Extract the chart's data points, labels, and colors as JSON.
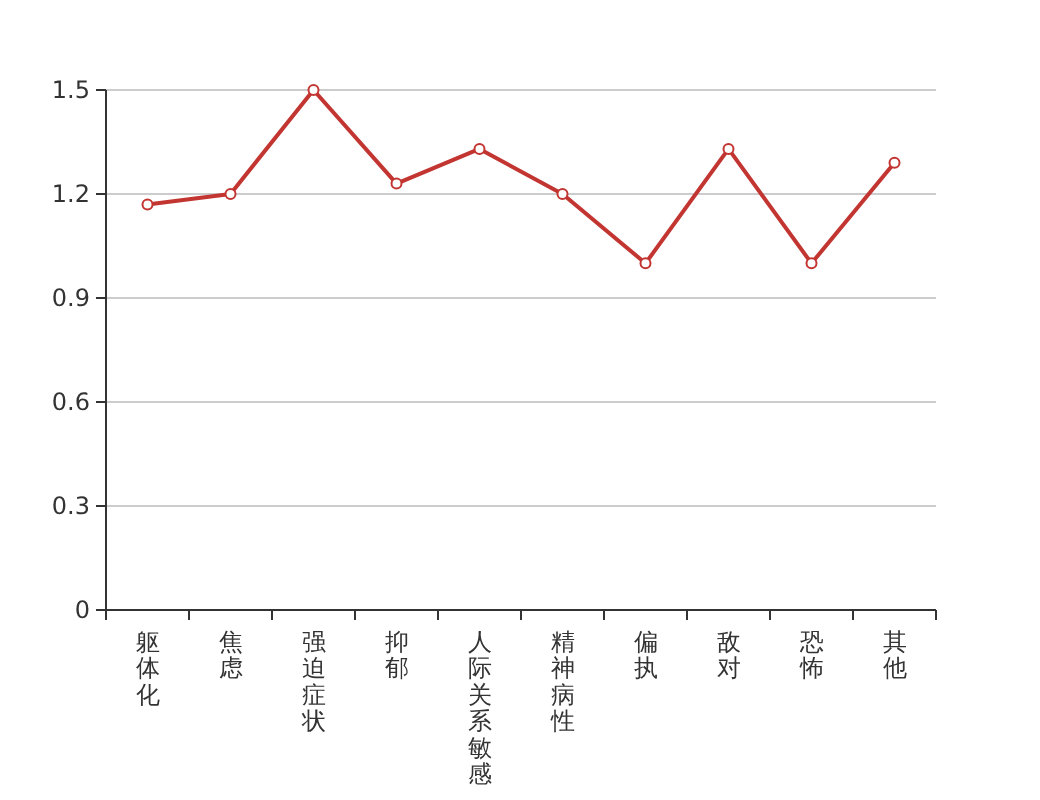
{
  "chart_data": {
    "type": "line",
    "categories": [
      "躯体化",
      "焦虑",
      "强迫症状",
      "抑郁",
      "人际关系敏感",
      "精神病性",
      "偏执",
      "敌对",
      "恐怖",
      "其他"
    ],
    "series": [
      {
        "color": "#c23531",
        "values": [
          1.17,
          1.2,
          1.5,
          1.23,
          1.33,
          1.2,
          1.0,
          1.33,
          1.0,
          1.29
        ]
      }
    ],
    "ylim": [
      0,
      1.5
    ],
    "yticks": [
      0,
      0.3,
      0.6,
      0.9,
      1.2,
      1.5
    ],
    "grid": "y",
    "marker": "circle",
    "line_style": "solid"
  }
}
